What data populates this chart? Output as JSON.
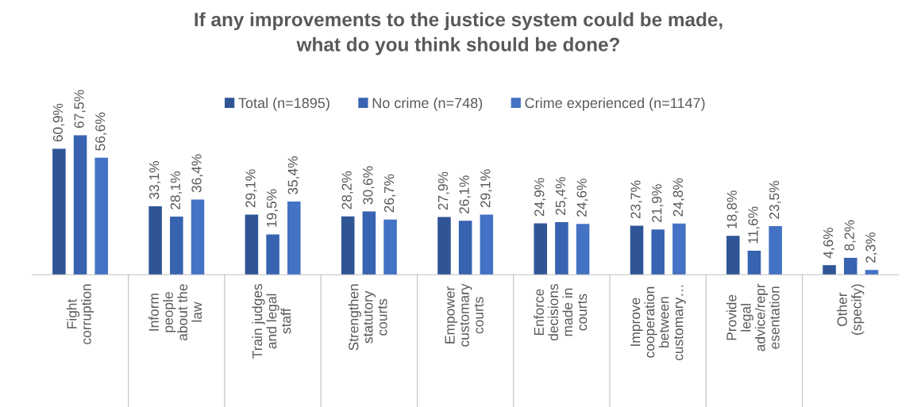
{
  "chart_data": {
    "type": "bar",
    "title": "If any improvements to the justice system could be made,\nwhat do you think should be done?",
    "categories": [
      "Fight\ncorruption",
      "Inform\npeople\nabout the\nlaw",
      "Train judges\nand legal\nstaff",
      "Strengthen\nstatutory\ncourts",
      "Empower\ncustomary\ncourts",
      "Enforce\ndecisions\nmade in\ncourts",
      "Improve\ncooperation\nbetween\ncustomary…",
      "Provide\nlegal\nadvice/repr\nesentation",
      "Other\n(specify)"
    ],
    "series": [
      {
        "name": "Total (n=1895)",
        "color": "#2f5597",
        "values": [
          60.9,
          33.1,
          29.1,
          28.2,
          27.9,
          24.9,
          23.7,
          18.8,
          4.6
        ],
        "value_labels": [
          "60,9%",
          "33,1%",
          "29,1%",
          "28,2%",
          "27,9%",
          "24,9%",
          "23,7%",
          "18,8%",
          "4,6%"
        ]
      },
      {
        "name": "No crime (n=748)",
        "color": "#3763b0",
        "values": [
          67.5,
          28.1,
          19.5,
          30.6,
          26.1,
          25.4,
          21.9,
          11.6,
          8.2
        ],
        "value_labels": [
          "67,5%",
          "28,1%",
          "19,5%",
          "30,6%",
          "26,1%",
          "25,4%",
          "21,9%",
          "11,6%",
          "8,2%"
        ]
      },
      {
        "name": "Crime experienced (n=1147)",
        "color": "#4472c4",
        "values": [
          56.6,
          36.4,
          35.4,
          26.7,
          29.1,
          24.6,
          24.8,
          23.5,
          2.3
        ],
        "value_labels": [
          "56,6%",
          "36,4%",
          "35,4%",
          "26,7%",
          "29,1%",
          "24,6%",
          "24,8%",
          "23,5%",
          "2,3%"
        ]
      }
    ],
    "legend": "top",
    "grid": false
  }
}
